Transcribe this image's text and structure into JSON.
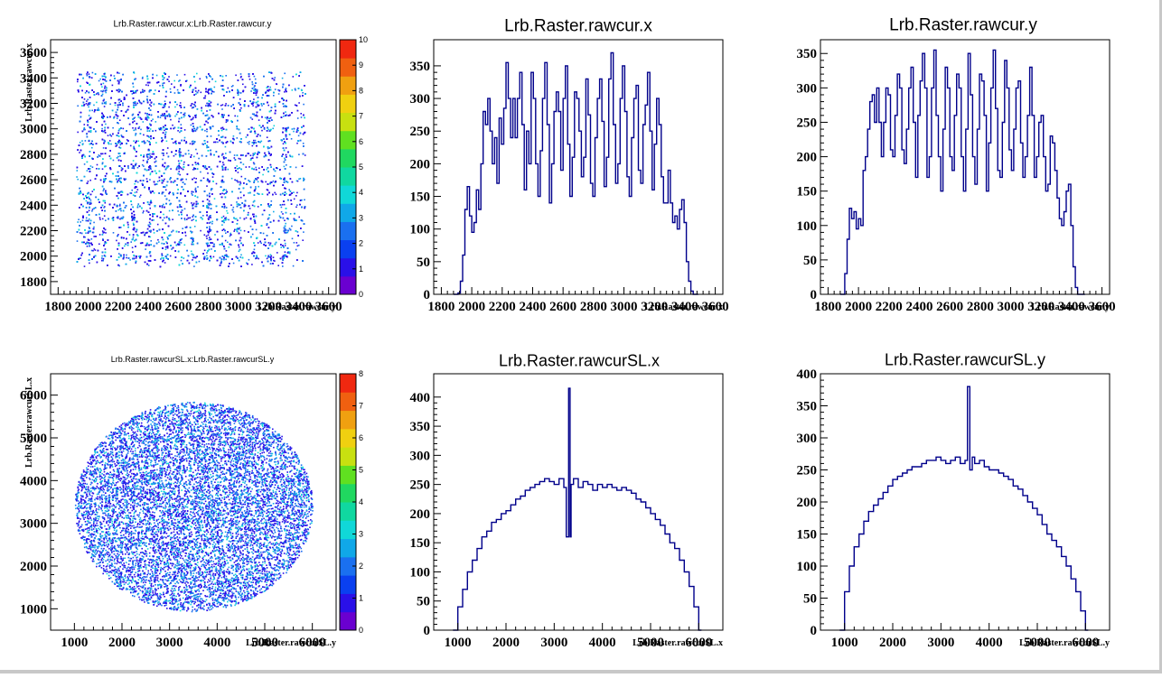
{
  "chart_data": [
    {
      "type": "heatmap",
      "title": "Lrb.Raster.rawcur.x:Lrb.Raster.rawcur.y",
      "xlabel": "Lrb.Raster.rawcur.y",
      "ylabel": "Lrb.Raster.rawcur.x",
      "xlim": [
        1750,
        3650
      ],
      "ylim": [
        1700,
        3700
      ],
      "xticks": [
        1800,
        2000,
        2200,
        2400,
        2600,
        2800,
        3000,
        3200,
        3400,
        3600
      ],
      "yticks": [
        1800,
        2000,
        2200,
        2400,
        2600,
        2800,
        3000,
        3200,
        3400,
        3600
      ],
      "zlim": [
        0,
        10
      ],
      "zticks": [
        0,
        1,
        2,
        3,
        4,
        5,
        6,
        7,
        8,
        9,
        10
      ],
      "region": {
        "shape": "rectangle",
        "x_range": [
          1920,
          3440
        ],
        "y_range": [
          1920,
          3450
        ]
      },
      "grid_lines": {
        "x": [
          2000,
          2100,
          2200,
          2300,
          2400,
          2500,
          2600,
          2700,
          2800,
          2900,
          3000,
          3100,
          3200,
          3300
        ],
        "y": [
          2000,
          2100,
          2200,
          2300,
          2400,
          2500,
          2600,
          2700,
          2800,
          2900,
          3000,
          3100,
          3200,
          3300
        ]
      },
      "typical_z": 2
    },
    {
      "type": "line",
      "title": "Lrb.Raster.rawcur.x",
      "xlabel": "Lrb.Raster.rawcur.x",
      "xlim": [
        1750,
        3650
      ],
      "ylim": [
        0,
        390
      ],
      "xticks": [
        1800,
        2000,
        2200,
        2400,
        2600,
        2800,
        3000,
        3200,
        3400,
        3600
      ],
      "yticks": [
        0,
        50,
        100,
        150,
        200,
        250,
        300,
        350
      ],
      "x": [
        1880,
        1895,
        1910,
        1925,
        1940,
        1955,
        1970,
        1985,
        2000,
        2015,
        2030,
        2045,
        2060,
        2075,
        2090,
        2105,
        2120,
        2135,
        2150,
        2165,
        2180,
        2195,
        2210,
        2225,
        2240,
        2255,
        2270,
        2285,
        2300,
        2315,
        2330,
        2345,
        2360,
        2375,
        2390,
        2405,
        2420,
        2435,
        2450,
        2465,
        2480,
        2495,
        2510,
        2525,
        2540,
        2555,
        2570,
        2585,
        2600,
        2615,
        2630,
        2645,
        2660,
        2675,
        2690,
        2705,
        2720,
        2735,
        2750,
        2765,
        2780,
        2795,
        2810,
        2825,
        2840,
        2855,
        2870,
        2885,
        2900,
        2915,
        2930,
        2945,
        2960,
        2975,
        2990,
        3005,
        3020,
        3035,
        3050,
        3065,
        3080,
        3095,
        3110,
        3125,
        3140,
        3155,
        3170,
        3185,
        3200,
        3215,
        3230,
        3245,
        3260,
        3275,
        3290,
        3305,
        3320,
        3335,
        3350,
        3365,
        3380,
        3395,
        3410,
        3425,
        3440,
        3455,
        3470
      ],
      "values": [
        0,
        0,
        2,
        20,
        60,
        130,
        165,
        120,
        95,
        110,
        160,
        130,
        200,
        280,
        260,
        300,
        250,
        200,
        240,
        170,
        270,
        230,
        285,
        355,
        300,
        240,
        300,
        240,
        300,
        340,
        260,
        160,
        250,
        200,
        340,
        300,
        200,
        150,
        220,
        300,
        355,
        260,
        140,
        200,
        280,
        310,
        280,
        190,
        300,
        350,
        230,
        150,
        210,
        310,
        300,
        250,
        180,
        210,
        330,
        275,
        170,
        150,
        240,
        300,
        330,
        265,
        165,
        210,
        330,
        370,
        260,
        170,
        200,
        300,
        350,
        280,
        180,
        150,
        240,
        300,
        320,
        190,
        170,
        260,
        290,
        340,
        250,
        160,
        230,
        300,
        260,
        180,
        140,
        140,
        190,
        140,
        110,
        120,
        100,
        130,
        145,
        110,
        50,
        20,
        5,
        0,
        0
      ]
    },
    {
      "type": "line",
      "title": "Lrb.Raster.rawcur.y",
      "xlabel": "Lrb.Raster.rawcur.y",
      "xlim": [
        1750,
        3650
      ],
      "ylim": [
        0,
        370
      ],
      "xticks": [
        1800,
        2000,
        2200,
        2400,
        2600,
        2800,
        3000,
        3200,
        3400,
        3600
      ],
      "yticks": [
        0,
        50,
        100,
        150,
        200,
        250,
        300,
        350
      ],
      "x": [
        1880,
        1895,
        1910,
        1925,
        1940,
        1955,
        1970,
        1985,
        2000,
        2015,
        2030,
        2045,
        2060,
        2075,
        2090,
        2105,
        2120,
        2135,
        2150,
        2165,
        2180,
        2195,
        2210,
        2225,
        2240,
        2255,
        2270,
        2285,
        2300,
        2315,
        2330,
        2345,
        2360,
        2375,
        2390,
        2405,
        2420,
        2435,
        2450,
        2465,
        2480,
        2495,
        2510,
        2525,
        2540,
        2555,
        2570,
        2585,
        2600,
        2615,
        2630,
        2645,
        2660,
        2675,
        2690,
        2705,
        2720,
        2735,
        2750,
        2765,
        2780,
        2795,
        2810,
        2825,
        2840,
        2855,
        2870,
        2885,
        2900,
        2915,
        2930,
        2945,
        2960,
        2975,
        2990,
        3005,
        3020,
        3035,
        3050,
        3065,
        3080,
        3095,
        3110,
        3125,
        3140,
        3155,
        3170,
        3185,
        3200,
        3215,
        3230,
        3245,
        3260,
        3275,
        3290,
        3305,
        3320,
        3335,
        3350,
        3365,
        3380,
        3395,
        3410,
        3425,
        3440,
        3455,
        3470
      ],
      "values": [
        0,
        0,
        30,
        80,
        125,
        110,
        120,
        95,
        110,
        100,
        180,
        200,
        240,
        280,
        290,
        250,
        300,
        250,
        200,
        250,
        300,
        290,
        210,
        200,
        260,
        320,
        300,
        210,
        190,
        240,
        300,
        330,
        250,
        170,
        260,
        310,
        350,
        300,
        170,
        200,
        300,
        355,
        260,
        200,
        150,
        240,
        330,
        300,
        200,
        180,
        260,
        320,
        300,
        200,
        150,
        240,
        350,
        290,
        200,
        160,
        240,
        320,
        310,
        260,
        150,
        220,
        300,
        355,
        270,
        180,
        170,
        250,
        340,
        300,
        210,
        180,
        240,
        300,
        310,
        220,
        170,
        200,
        260,
        330,
        260,
        170,
        200,
        250,
        260,
        200,
        150,
        160,
        230,
        220,
        180,
        140,
        110,
        100,
        120,
        150,
        160,
        100,
        40,
        10,
        0,
        0,
        0
      ]
    },
    {
      "type": "heatmap",
      "title": "Lrb.Raster.rawcurSL.x:Lrb.Raster.rawcurSL.y",
      "xlabel": "Lrb.Raster.rawcurSL.y",
      "ylabel": "Lrb.Raster.rawcurSL.x",
      "xlim": [
        500,
        6500
      ],
      "ylim": [
        500,
        6500
      ],
      "xticks": [
        1000,
        2000,
        3000,
        4000,
        5000,
        6000
      ],
      "yticks": [
        1000,
        2000,
        3000,
        4000,
        5000,
        6000
      ],
      "zlim": [
        0,
        8
      ],
      "zticks": [
        0,
        1,
        2,
        3,
        4,
        5,
        6,
        7,
        8
      ],
      "region": {
        "shape": "ellipse",
        "center": [
          3500,
          3400
        ],
        "radii": [
          2500,
          2450
        ]
      },
      "typical_z": 2
    },
    {
      "type": "line",
      "title": "Lrb.Raster.rawcurSL.x",
      "xlabel": "Lrb.Raster.rawcurSL.x",
      "xlim": [
        500,
        6500
      ],
      "ylim": [
        0,
        440
      ],
      "xticks": [
        1000,
        2000,
        3000,
        4000,
        5000,
        6000
      ],
      "yticks": [
        0,
        50,
        100,
        150,
        200,
        250,
        300,
        350,
        400
      ],
      "x": [
        900,
        1000,
        1100,
        1200,
        1300,
        1400,
        1500,
        1600,
        1700,
        1800,
        1900,
        2000,
        2100,
        2200,
        2300,
        2400,
        2500,
        2600,
        2700,
        2800,
        2900,
        3000,
        3100,
        3200,
        3250,
        3300,
        3330,
        3350,
        3400,
        3500,
        3600,
        3700,
        3800,
        3900,
        4000,
        4100,
        4200,
        4300,
        4400,
        4500,
        4600,
        4700,
        4800,
        4900,
        5000,
        5100,
        5200,
        5300,
        5400,
        5500,
        5600,
        5700,
        5800,
        5900,
        6000
      ],
      "values": [
        0,
        40,
        70,
        100,
        120,
        140,
        160,
        170,
        185,
        190,
        200,
        205,
        215,
        225,
        230,
        240,
        245,
        250,
        255,
        260,
        255,
        250,
        260,
        245,
        160,
        415,
        160,
        250,
        260,
        245,
        255,
        250,
        240,
        250,
        245,
        250,
        245,
        240,
        245,
        240,
        235,
        225,
        220,
        210,
        200,
        190,
        180,
        165,
        150,
        140,
        120,
        100,
        75,
        40,
        0
      ]
    },
    {
      "type": "line",
      "title": "Lrb.Raster.rawcurSL.y",
      "xlabel": "Lrb.Raster.rawcurSL.y",
      "xlim": [
        500,
        6500
      ],
      "ylim": [
        0,
        400
      ],
      "xticks": [
        1000,
        2000,
        3000,
        4000,
        5000,
        6000
      ],
      "yticks": [
        0,
        50,
        100,
        150,
        200,
        250,
        300,
        350,
        400
      ],
      "x": [
        900,
        1000,
        1100,
        1200,
        1300,
        1400,
        1500,
        1600,
        1700,
        1800,
        1900,
        2000,
        2100,
        2200,
        2300,
        2400,
        2500,
        2600,
        2700,
        2800,
        2900,
        3000,
        3100,
        3200,
        3300,
        3400,
        3500,
        3550,
        3600,
        3650,
        3700,
        3800,
        3900,
        4000,
        4100,
        4200,
        4300,
        4400,
        4500,
        4600,
        4700,
        4800,
        4900,
        5000,
        5100,
        5200,
        5300,
        5400,
        5500,
        5600,
        5700,
        5800,
        5900,
        6000
      ],
      "values": [
        0,
        60,
        100,
        130,
        150,
        170,
        185,
        195,
        205,
        215,
        225,
        235,
        240,
        245,
        250,
        255,
        255,
        260,
        265,
        265,
        270,
        265,
        260,
        265,
        270,
        260,
        265,
        380,
        250,
        270,
        260,
        265,
        255,
        250,
        250,
        245,
        240,
        235,
        225,
        220,
        210,
        200,
        190,
        180,
        165,
        150,
        140,
        130,
        115,
        100,
        80,
        60,
        30,
        0
      ]
    }
  ]
}
